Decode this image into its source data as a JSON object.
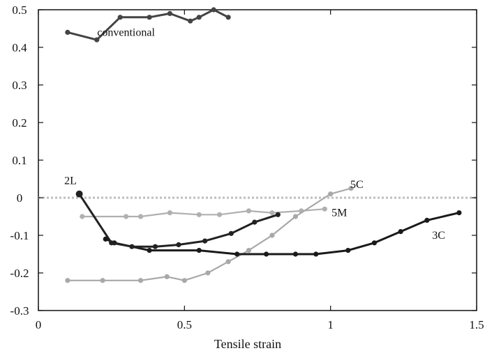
{
  "chart_data": {
    "type": "line",
    "title": "",
    "xlabel": "Tensile strain",
    "ylabel": "",
    "xlim": [
      0,
      1.5
    ],
    "ylim": [
      -0.3,
      0.5
    ],
    "xticks": [
      "0",
      "0.5",
      "1",
      "1.5"
    ],
    "yticks": [
      "0.5",
      "0.4",
      "0.3",
      "0.2",
      "0.1",
      "0",
      "-0.1",
      "-0.2",
      "-0.3"
    ],
    "reference_line": {
      "y": 0,
      "style": "dotted",
      "color": "#bfbfbf"
    },
    "grid": false,
    "series": [
      {
        "name": "conventional",
        "color": "#444444",
        "x": [
          0.1,
          0.2,
          0.28,
          0.38,
          0.45,
          0.52,
          0.55,
          0.6,
          0.65
        ],
        "y": [
          0.44,
          0.42,
          0.48,
          0.48,
          0.49,
          0.47,
          0.48,
          0.5,
          0.48
        ]
      },
      {
        "name": "2L",
        "color": "#222222",
        "x": [
          0.14,
          0.25,
          0.32,
          0.4,
          0.48,
          0.57,
          0.66,
          0.74,
          0.82
        ],
        "y": [
          0.01,
          -0.12,
          -0.13,
          -0.13,
          -0.125,
          -0.115,
          -0.095,
          -0.065,
          -0.045
        ]
      },
      {
        "name": "5M",
        "color": "#b0b0b0",
        "x": [
          0.15,
          0.3,
          0.35,
          0.45,
          0.55,
          0.62,
          0.72,
          0.8,
          0.9,
          0.98
        ],
        "y": [
          -0.05,
          -0.05,
          -0.05,
          -0.04,
          -0.045,
          -0.045,
          -0.035,
          -0.04,
          -0.035,
          -0.03
        ]
      },
      {
        "name": "5C",
        "color": "#a8a8a8",
        "x": [
          0.1,
          0.22,
          0.35,
          0.44,
          0.5,
          0.58,
          0.65,
          0.72,
          0.8,
          0.88,
          1.0,
          1.07
        ],
        "y": [
          -0.22,
          -0.22,
          -0.22,
          -0.21,
          -0.22,
          -0.2,
          -0.17,
          -0.14,
          -0.1,
          -0.05,
          0.01,
          0.025
        ]
      },
      {
        "name": "3C",
        "color": "#1a1a1a",
        "x": [
          0.23,
          0.26,
          0.38,
          0.55,
          0.68,
          0.78,
          0.88,
          0.95,
          1.06,
          1.15,
          1.24,
          1.33,
          1.44
        ],
        "y": [
          -0.11,
          -0.12,
          -0.14,
          -0.14,
          -0.15,
          -0.15,
          -0.15,
          -0.15,
          -0.14,
          -0.12,
          -0.09,
          -0.06,
          -0.04
        ]
      }
    ]
  }
}
